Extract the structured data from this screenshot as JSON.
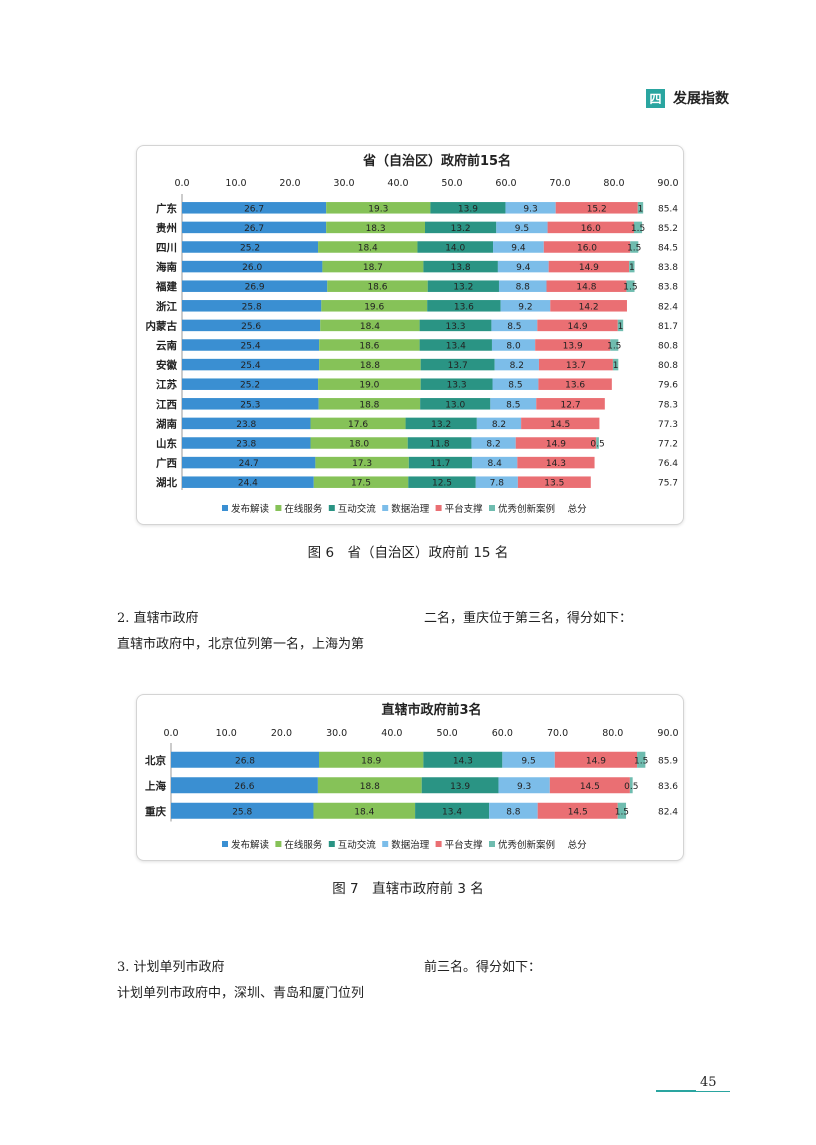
{
  "header": {
    "badge": "四",
    "title": "发展指数"
  },
  "figure6": {
    "caption": "图 6　省（自治区）政府前 15 名"
  },
  "figure7": {
    "caption": "图 7　直辖市政府前 3 名"
  },
  "section2": {
    "heading": "2. 直辖市政府",
    "line1": "直辖市政府中，北京位列第一名，上海为第",
    "col2": "二名，重庆位于第三名，得分如下："
  },
  "section3": {
    "heading": "3. 计划单列市政府",
    "line1": "计划单列市政府中，深圳、青岛和厦门位列",
    "col2": "前三名。得分如下："
  },
  "page_number": "45",
  "chart_data": [
    {
      "type": "bar",
      "orientation": "horizontal",
      "stacked": true,
      "title": "省（自治区）政府前15名",
      "xlim": [
        0,
        90
      ],
      "xticks": [
        "0.0",
        "10.0",
        "20.0",
        "30.0",
        "40.0",
        "50.0",
        "60.0",
        "70.0",
        "80.0",
        "90.0"
      ],
      "categories": [
        "广东",
        "贵州",
        "四川",
        "海南",
        "福建",
        "浙江",
        "内蒙古",
        "云南",
        "安徽",
        "江苏",
        "江西",
        "湖南",
        "山东",
        "广西",
        "湖北"
      ],
      "series": [
        {
          "name": "发布解读",
          "color": "#3a8fd2",
          "values": [
            26.7,
            26.7,
            25.2,
            26.0,
            26.9,
            25.8,
            25.6,
            25.4,
            25.4,
            25.2,
            25.3,
            23.8,
            23.8,
            24.7,
            24.4
          ],
          "labels": [
            "26.7",
            "26.7",
            "25.2",
            "26.0",
            "26.9",
            "25.8",
            "25.6",
            "25.4",
            "25.4",
            "25.2",
            "25.3",
            "23.8",
            "23.8",
            "24.7",
            "24.4"
          ]
        },
        {
          "name": "在线服务",
          "color": "#86c258",
          "values": [
            19.3,
            18.3,
            18.4,
            18.7,
            18.6,
            19.6,
            18.4,
            18.6,
            18.8,
            19.0,
            18.8,
            17.6,
            18.0,
            17.3,
            17.5
          ],
          "labels": [
            "19.3",
            "18.3",
            "18.4",
            "18.7",
            "18.6",
            "19.6",
            "18.4",
            "18.6",
            "18.8",
            "19.0",
            "18.8",
            "17.6",
            "18.0",
            "17.3",
            "17.5"
          ]
        },
        {
          "name": "互动交流",
          "color": "#2a9484",
          "values": [
            13.9,
            13.2,
            14.0,
            13.8,
            13.2,
            13.6,
            13.3,
            13.4,
            13.7,
            13.3,
            13.0,
            13.2,
            11.8,
            11.7,
            12.5
          ],
          "labels": [
            "13.9",
            "13.2",
            "14.0",
            "13.8",
            "13.2",
            "13.6",
            "13.3",
            "13.4",
            "13.7",
            "13.3",
            "13.0",
            "13.2",
            "11.8",
            "11.7",
            "12.5"
          ]
        },
        {
          "name": "数据治理",
          "color": "#7cbde9",
          "values": [
            9.3,
            9.5,
            9.4,
            9.4,
            8.8,
            9.2,
            8.5,
            8.0,
            8.2,
            8.5,
            8.5,
            8.2,
            8.2,
            8.4,
            7.8
          ],
          "labels": [
            "9.3",
            "9.5",
            "9.4",
            "9.4",
            "8.8",
            "9.2",
            "8.5",
            "8.0",
            "8.2",
            "8.5",
            "8.5",
            "8.2",
            "8.2",
            "8.4",
            "7.8"
          ]
        },
        {
          "name": "平台支撑",
          "color": "#ea6f73",
          "values": [
            15.2,
            16.0,
            16.0,
            14.9,
            14.8,
            14.2,
            14.9,
            13.9,
            13.7,
            13.6,
            12.7,
            14.5,
            14.9,
            14.3,
            13.5
          ],
          "labels": [
            "15.2",
            "16.0",
            "16.0",
            "14.9",
            "14.8",
            "14.2",
            "14.9",
            "13.9",
            "13.7",
            "13.6",
            "12.7",
            "14.5",
            "14.9",
            "14.3",
            "13.5"
          ]
        },
        {
          "name": "优秀创新案例",
          "color": "#6fbcaf",
          "values": [
            1,
            1.5,
            1.5,
            1,
            1.5,
            0,
            1,
            1.5,
            1,
            0,
            0,
            0,
            0.5,
            0,
            0
          ],
          "labels": [
            "1",
            "1.5",
            "1.5",
            "1",
            "1.5",
            "",
            "1",
            "1.5",
            "1",
            "",
            "",
            "",
            "0.5",
            "",
            ""
          ]
        }
      ],
      "totals": [
        "85.4",
        "85.2",
        "84.5",
        "83.8",
        "83.8",
        "82.4",
        "81.7",
        "80.8",
        "80.8",
        "79.6",
        "78.3",
        "77.3",
        "77.2",
        "76.4",
        "75.7"
      ],
      "legend": {
        "position": "bottom",
        "items": [
          "发布解读",
          "在线服务",
          "互动交流",
          "数据治理",
          "平台支撑",
          "优秀创新案例",
          "总分"
        ]
      }
    },
    {
      "type": "bar",
      "orientation": "horizontal",
      "stacked": true,
      "title": "直辖市政府前3名",
      "xlim": [
        0,
        90
      ],
      "xticks": [
        "0.0",
        "10.0",
        "20.0",
        "30.0",
        "40.0",
        "50.0",
        "60.0",
        "70.0",
        "80.0",
        "90.0"
      ],
      "categories": [
        "北京",
        "上海",
        "重庆"
      ],
      "series": [
        {
          "name": "发布解读",
          "color": "#3a8fd2",
          "values": [
            26.8,
            26.6,
            25.8
          ],
          "labels": [
            "26.8",
            "26.6",
            "25.8"
          ]
        },
        {
          "name": "在线服务",
          "color": "#86c258",
          "values": [
            18.9,
            18.8,
            18.4
          ],
          "labels": [
            "18.9",
            "18.8",
            "18.4"
          ]
        },
        {
          "name": "互动交流",
          "color": "#2a9484",
          "values": [
            14.3,
            13.9,
            13.4
          ],
          "labels": [
            "14.3",
            "13.9",
            "13.4"
          ]
        },
        {
          "name": "数据治理",
          "color": "#7cbde9",
          "values": [
            9.5,
            9.3,
            8.8
          ],
          "labels": [
            "9.5",
            "9.3",
            "8.8"
          ]
        },
        {
          "name": "平台支撑",
          "color": "#ea6f73",
          "values": [
            14.9,
            14.5,
            14.5
          ],
          "labels": [
            "14.9",
            "14.5",
            "14.5"
          ]
        },
        {
          "name": "优秀创新案例",
          "color": "#6fbcaf",
          "values": [
            1.5,
            0.5,
            1.5
          ],
          "labels": [
            "1.5",
            "0.5",
            "1.5"
          ]
        }
      ],
      "totals": [
        "85.9",
        "83.6",
        "82.4"
      ],
      "legend": {
        "position": "bottom",
        "items": [
          "发布解读",
          "在线服务",
          "互动交流",
          "数据治理",
          "平台支撑",
          "优秀创新案例",
          "总分"
        ]
      }
    }
  ]
}
